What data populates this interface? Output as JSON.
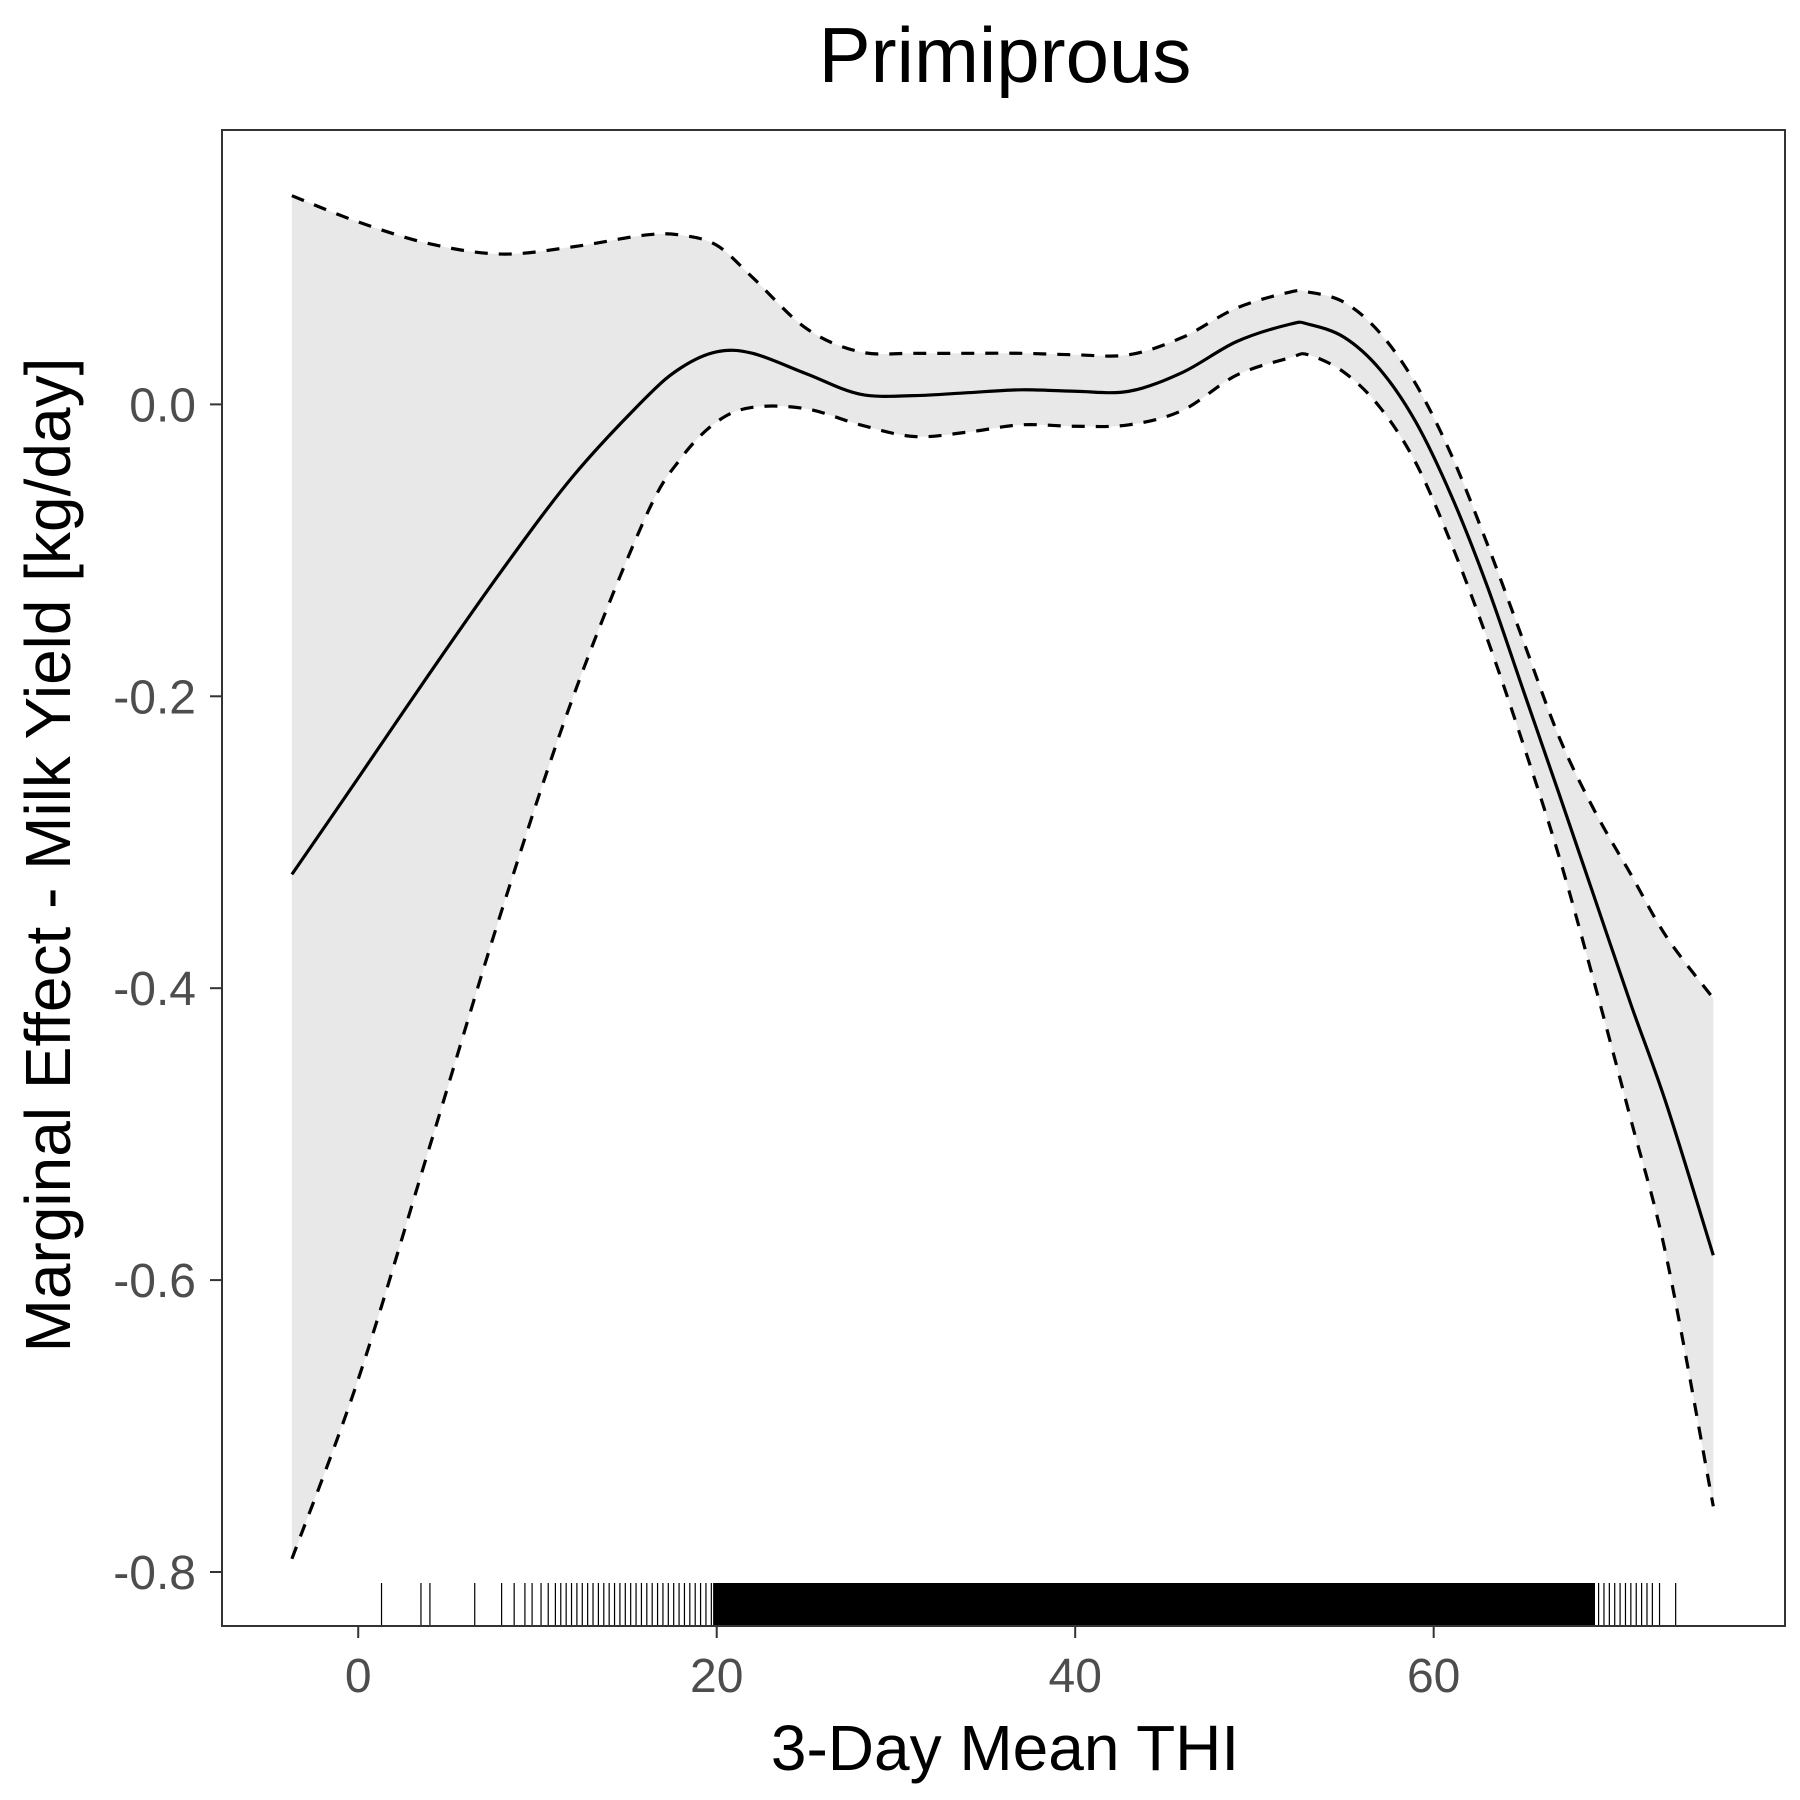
{
  "chart_data": {
    "type": "line",
    "title": "Primiprous",
    "xlabel": "3-Day Mean THI",
    "ylabel": "Marginal Effect - Milk Yield [kg/day]",
    "xlim": [
      -7.6,
      79.6
    ],
    "ylim": [
      -0.837,
      0.188
    ],
    "x_ticks": [
      0,
      20,
      40,
      60
    ],
    "x_tick_labels": [
      "0",
      "20",
      "40",
      "60"
    ],
    "y_ticks": [
      0.0,
      -0.2,
      -0.4,
      -0.6,
      -0.8
    ],
    "y_tick_labels": [
      "0.0",
      "-0.2",
      "-0.4",
      "-0.6",
      "-0.8"
    ],
    "grid": false,
    "series": [
      {
        "role": "estimate",
        "line_style": "solid",
        "x": [
          -3.7,
          0,
          4,
          8,
          12,
          16,
          18,
          20,
          22,
          25,
          28,
          31,
          34,
          37,
          40,
          43,
          46,
          49,
          52,
          53,
          55,
          57,
          59,
          61,
          63,
          65,
          67,
          69,
          71,
          73,
          75.6
        ],
        "y": [
          -0.322,
          -0.256,
          -0.184,
          -0.114,
          -0.049,
          0.004,
          0.025,
          0.036,
          0.035,
          0.021,
          0.007,
          0.006,
          0.008,
          0.01,
          0.009,
          0.009,
          0.022,
          0.043,
          0.055,
          0.055,
          0.046,
          0.024,
          -0.012,
          -0.063,
          -0.125,
          -0.196,
          -0.267,
          -0.339,
          -0.411,
          -0.48,
          -0.583
        ]
      },
      {
        "role": "upper confidence bound",
        "line_style": "dashed",
        "x": [
          -3.7,
          0,
          4,
          8,
          12,
          16,
          18,
          20,
          22,
          25,
          28,
          31,
          34,
          37,
          40,
          43,
          46,
          49,
          52,
          53,
          55,
          57,
          59,
          61,
          63,
          65,
          67,
          69,
          71,
          73,
          75.6
        ],
        "y": [
          0.143,
          0.125,
          0.11,
          0.103,
          0.108,
          0.116,
          0.116,
          0.109,
          0.087,
          0.052,
          0.036,
          0.035,
          0.035,
          0.035,
          0.034,
          0.034,
          0.046,
          0.066,
          0.077,
          0.077,
          0.07,
          0.049,
          0.014,
          -0.035,
          -0.096,
          -0.162,
          -0.228,
          -0.279,
          -0.322,
          -0.365,
          -0.407
        ]
      },
      {
        "role": "lower confidence bound",
        "line_style": "dashed",
        "x": [
          -3.7,
          0,
          4,
          8,
          12,
          16,
          18,
          20,
          22,
          25,
          28,
          31,
          34,
          37,
          40,
          43,
          46,
          49,
          52,
          53,
          55,
          57,
          59,
          61,
          63,
          65,
          67,
          69,
          71,
          73,
          75.6
        ],
        "y": [
          -0.791,
          -0.668,
          -0.508,
          -0.347,
          -0.2,
          -0.078,
          -0.037,
          -0.012,
          -0.002,
          -0.003,
          -0.014,
          -0.022,
          -0.019,
          -0.014,
          -0.015,
          -0.014,
          -0.004,
          0.02,
          0.032,
          0.034,
          0.022,
          -0.002,
          -0.04,
          -0.096,
          -0.161,
          -0.233,
          -0.31,
          -0.398,
          -0.49,
          -0.585,
          -0.755
        ]
      }
    ],
    "confidence_band": {
      "fill": "#e8e8e8",
      "from_series": "lower confidence bound",
      "to_series": "upper confidence bound"
    },
    "rug": {
      "sparse_x": [
        1.3,
        3.5,
        4.0,
        6.5,
        8.0,
        8.7,
        9.3,
        9.7,
        10.2,
        10.6,
        11.0,
        11.3,
        11.6,
        11.9,
        12.2,
        12.5,
        12.8,
        13.1,
        13.4,
        13.7,
        14.0,
        14.3,
        14.6,
        14.9,
        15.2,
        15.5,
        15.8,
        16.1,
        16.4,
        16.7,
        17.0,
        17.3,
        17.6,
        17.9,
        18.2,
        18.5,
        18.8,
        19.1,
        19.4,
        19.7,
        69.2,
        69.5,
        69.8,
        70.1,
        70.4,
        70.7,
        71.0,
        71.3,
        71.6,
        71.9,
        72.2,
        72.6,
        73.5
      ],
      "dense_range": [
        19.8,
        69.0
      ]
    },
    "colors": {
      "line": "#000000",
      "band": "#e8e8e8",
      "panel_border": "#333333",
      "tick_text": "#4d4d4d",
      "background": "#ffffff"
    }
  }
}
